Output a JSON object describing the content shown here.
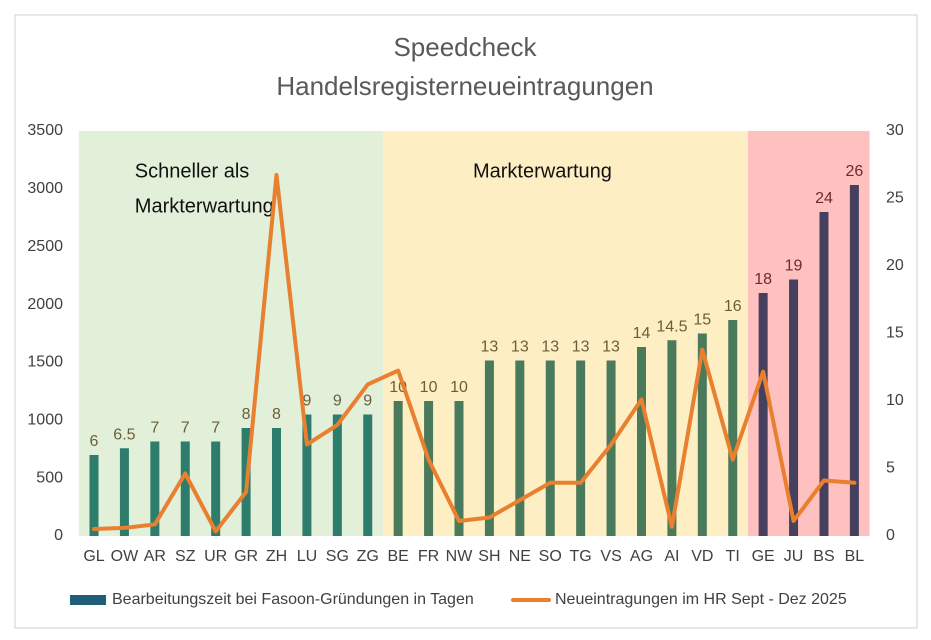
{
  "chart_data": {
    "type": "bar-line",
    "title": [
      "Speedcheck",
      "Handelsregisterneueintragungen"
    ],
    "categories": [
      "GL",
      "OW",
      "AR",
      "SZ",
      "UR",
      "GR",
      "ZH",
      "LU",
      "SG",
      "ZG",
      "BE",
      "FR",
      "NW",
      "SH",
      "NE",
      "SO",
      "TG",
      "VS",
      "AG",
      "AI",
      "VD",
      "TI",
      "GE",
      "JU",
      "BS",
      "BL"
    ],
    "series": [
      {
        "name": "Bearbeitungszeit bei Fasoon-Gründungen in Tagen",
        "type": "bar",
        "axis": "y2",
        "color": "#1f5f7a",
        "colors": [
          "#2e7c6c",
          "#2e7c6c",
          "#2e7c6c",
          "#2e7c6c",
          "#2e7c6c",
          "#2e7c6c",
          "#2e7c6c",
          "#2e7c6c",
          "#2e7c6c",
          "#2e7c6c",
          "#4a7a5c",
          "#4a7a5c",
          "#4a7a5c",
          "#4a7a5c",
          "#4a7a5c",
          "#4a7a5c",
          "#4a7a5c",
          "#4a7a5c",
          "#4a7a5c",
          "#4a7a5c",
          "#4a7a5c",
          "#4a7a5c",
          "#45405e",
          "#45405e",
          "#45405e",
          "#45405e"
        ],
        "values": [
          6,
          6.5,
          7,
          7,
          7,
          8,
          8,
          9,
          9,
          9,
          10,
          10,
          10,
          13,
          13,
          13,
          13,
          13,
          14,
          14.5,
          15,
          16,
          18,
          19,
          24,
          26
        ]
      },
      {
        "name": "Neueintragungen im HR Sept - Dez 2025",
        "type": "line",
        "axis": "y",
        "color": "#e8802f",
        "values": [
          60,
          70,
          100,
          540,
          40,
          380,
          3120,
          790,
          960,
          1310,
          1430,
          660,
          130,
          160,
          310,
          460,
          460,
          790,
          1180,
          80,
          1610,
          660,
          1420,
          130,
          480,
          460
        ]
      }
    ],
    "zones": [
      {
        "label": [
          "Schneller als",
          "Markterwartung"
        ],
        "start": 0,
        "end": 9,
        "color": "#e2efd9"
      },
      {
        "label": [
          "Markterwartung"
        ],
        "start": 10,
        "end": 21,
        "color": "#fdefc3"
      },
      {
        "start": 22,
        "end": 25,
        "color": "#ffc0c0"
      }
    ],
    "ylim": [
      0,
      3500
    ],
    "yticks": [
      0,
      500,
      1000,
      1500,
      2000,
      2500,
      3000,
      3500
    ],
    "y2lim": [
      0,
      30
    ],
    "y2ticks": [
      0,
      5,
      10,
      15,
      20,
      25,
      30
    ]
  }
}
